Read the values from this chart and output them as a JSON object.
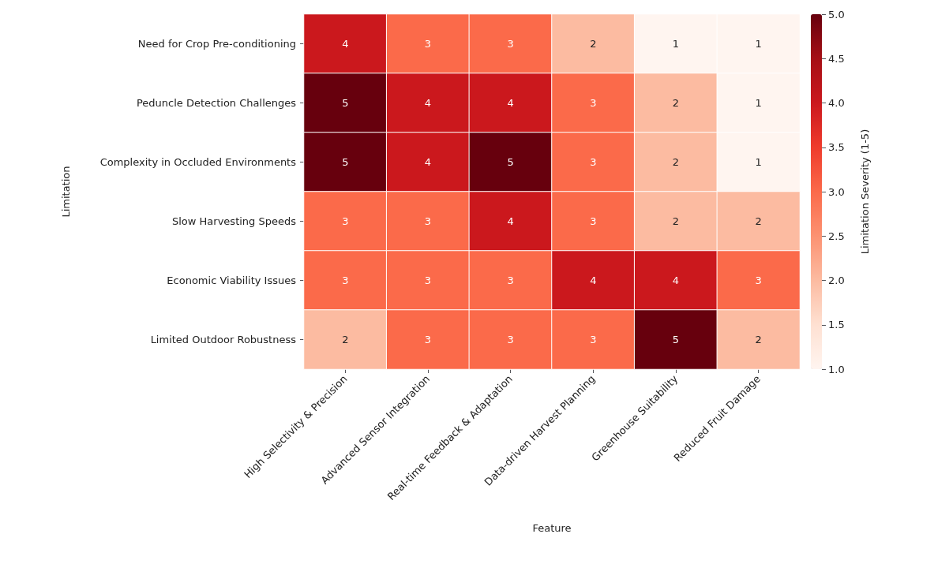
{
  "chart_data": {
    "type": "heatmap",
    "xlabel": "Feature",
    "ylabel": "Limitation",
    "clabel": "Limitation Severity (1-5)",
    "categories": [
      "High Selectivity & Precision",
      "Advanced Sensor Integration",
      "Real-time Feedback & Adaptation",
      "Data-driven Harvest Planning",
      "Greenhouse Suitability",
      "Reduced Fruit Damage"
    ],
    "y_categories": [
      "Need for Crop Pre-conditioning",
      "Peduncle Detection Challenges",
      "Complexity in Occluded Environments",
      "Slow Harvesting Speeds",
      "Economic Viability Issues",
      "Limited Outdoor Robustness"
    ],
    "cells": [
      [
        4,
        3,
        3,
        2,
        1,
        1
      ],
      [
        5,
        4,
        4,
        3,
        2,
        1
      ],
      [
        5,
        4,
        5,
        3,
        2,
        1
      ],
      [
        3,
        3,
        4,
        3,
        2,
        2
      ],
      [
        3,
        3,
        3,
        4,
        4,
        3
      ],
      [
        2,
        3,
        3,
        3,
        5,
        2
      ]
    ],
    "clim": [
      1,
      5
    ],
    "cticks": [
      {
        "value": 1,
        "label": "1.0"
      },
      {
        "value": 1.5,
        "label": "1.5"
      },
      {
        "value": 2,
        "label": "2.0"
      },
      {
        "value": 2.5,
        "label": "2.5"
      },
      {
        "value": 3,
        "label": "3.0"
      },
      {
        "value": 3.5,
        "label": "3.5"
      },
      {
        "value": 4,
        "label": "4.0"
      },
      {
        "value": 4.5,
        "label": "4.5"
      },
      {
        "value": 5,
        "label": "5.0"
      }
    ],
    "data_labels": true
  }
}
